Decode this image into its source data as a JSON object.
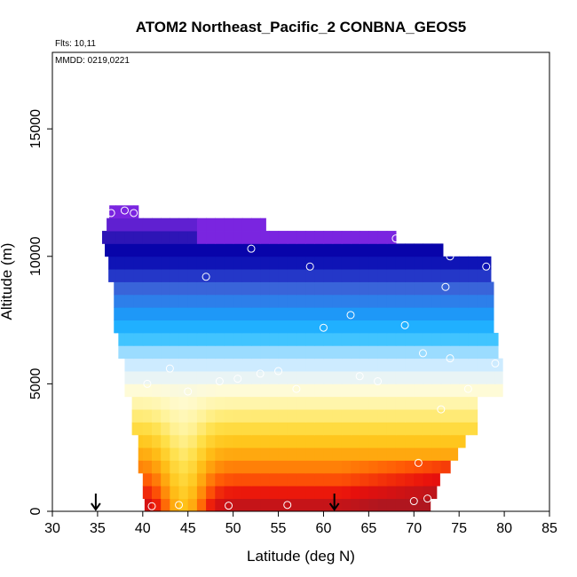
{
  "chart_data": {
    "type": "heatmap",
    "title": "ATOM2 Northeast_Pacific_2 CONBNA_GEOS5",
    "annotations": [
      "Flts: 10,11",
      "MMDD: 0219,0221"
    ],
    "xlabel": "Latitude (deg N)",
    "ylabel": "Altitude (m)",
    "xlim": [
      30,
      85
    ],
    "ylim": [
      0,
      18000
    ],
    "x_ticks": [
      "30",
      "35",
      "40",
      "45",
      "50",
      "55",
      "60",
      "65",
      "70",
      "75",
      "80",
      "85"
    ],
    "y_ticks": [
      "0",
      "5000",
      "10000",
      "15000"
    ],
    "grid": false,
    "legend": "none",
    "colorscale": [
      "#b0161f",
      "#e8100c",
      "#ff5a05",
      "#ff9a0a",
      "#ffc41a",
      "#ffe04a",
      "#fff39a",
      "#fffbd6",
      "#e2f2ff",
      "#b8e4ff",
      "#3ec3ff",
      "#14a8ff",
      "#2a86ee",
      "#3a62d8",
      "#1a22c0",
      "#0000a8",
      "#3318b8",
      "#7a25e0"
    ],
    "series": [
      {
        "name": "",
        "type": "observations",
        "x": [
          41,
          44,
          49.5,
          56,
          70,
          71.5,
          40.5,
          45,
          48.5,
          50.5,
          53,
          55,
          57,
          60,
          63,
          64,
          66,
          69,
          71,
          73,
          74,
          76,
          79,
          43,
          47,
          52,
          58.5,
          68,
          74,
          78,
          38,
          39,
          36.5,
          70.5,
          73.5
        ],
        "y": [
          200,
          250,
          220,
          250,
          400,
          500,
          5000,
          4700,
          5100,
          5200,
          5400,
          5500,
          4800,
          7200,
          7700,
          5300,
          5100,
          7300,
          6200,
          4000,
          6000,
          4800,
          5800,
          5600,
          9200,
          10300,
          9600,
          10700,
          10000,
          9600,
          11800,
          11700,
          11700,
          1900,
          8800
        ]
      },
      {
        "name": "",
        "type": "arrows",
        "x": [
          34.8,
          61.2
        ],
        "y": [
          0,
          0
        ]
      }
    ]
  }
}
